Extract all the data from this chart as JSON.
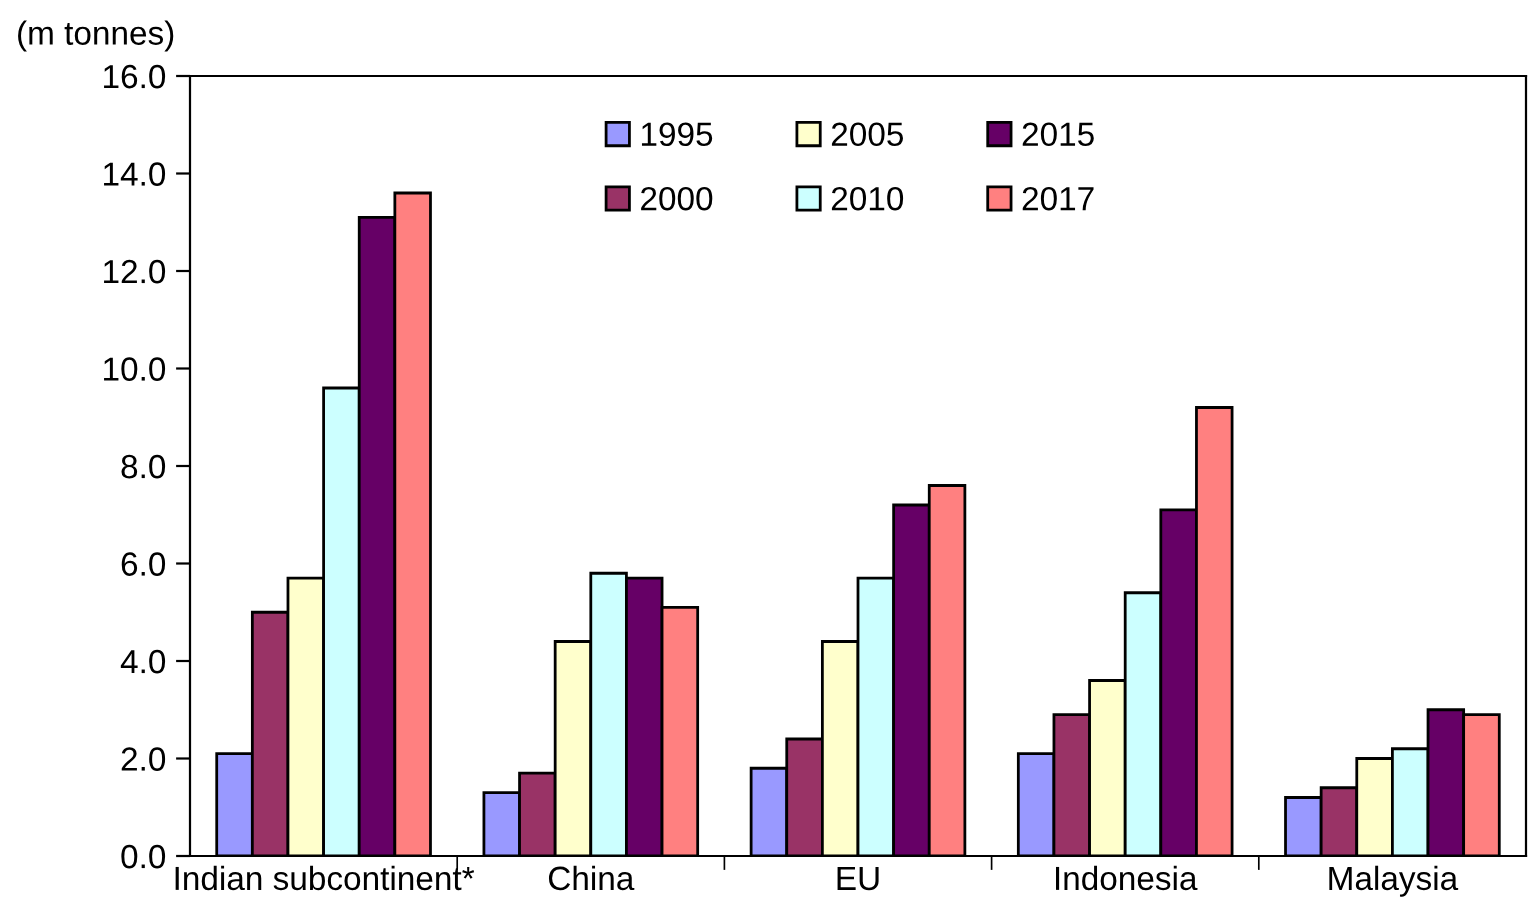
{
  "chart_data": {
    "type": "bar",
    "ylabel": "(m tonnes)",
    "categories": [
      "Indian subcontinent*",
      "China",
      "EU",
      "Indonesia",
      "Malaysia"
    ],
    "series": [
      {
        "name": "1995",
        "color": "#9999ff",
        "values": [
          2.1,
          1.3,
          1.8,
          2.1,
          1.2
        ]
      },
      {
        "name": "2000",
        "color": "#993366",
        "values": [
          5.0,
          1.7,
          2.4,
          2.9,
          1.4
        ]
      },
      {
        "name": "2005",
        "color": "#ffffcc",
        "values": [
          5.7,
          4.4,
          4.4,
          3.6,
          2.0
        ]
      },
      {
        "name": "2010",
        "color": "#ccffff",
        "values": [
          9.6,
          5.8,
          5.7,
          5.4,
          2.2
        ]
      },
      {
        "name": "2015",
        "color": "#660066",
        "values": [
          13.1,
          5.7,
          7.2,
          7.1,
          3.0
        ]
      },
      {
        "name": "2017",
        "color": "#ff8080",
        "values": [
          13.6,
          5.1,
          7.6,
          9.2,
          2.9
        ]
      }
    ],
    "ylim": [
      0,
      16
    ],
    "yticks": [
      {
        "value": 0,
        "label": "0.0"
      },
      {
        "value": 2,
        "label": "2.0"
      },
      {
        "value": 4,
        "label": "4.0"
      },
      {
        "value": 6,
        "label": "6.0"
      },
      {
        "value": 8,
        "label": "8.0"
      },
      {
        "value": 10,
        "label": "10.0"
      },
      {
        "value": 12,
        "label": "12.0"
      },
      {
        "value": 14,
        "label": "14.0"
      },
      {
        "value": 16,
        "label": "16.0"
      }
    ],
    "grid": false,
    "legend": "top right"
  }
}
